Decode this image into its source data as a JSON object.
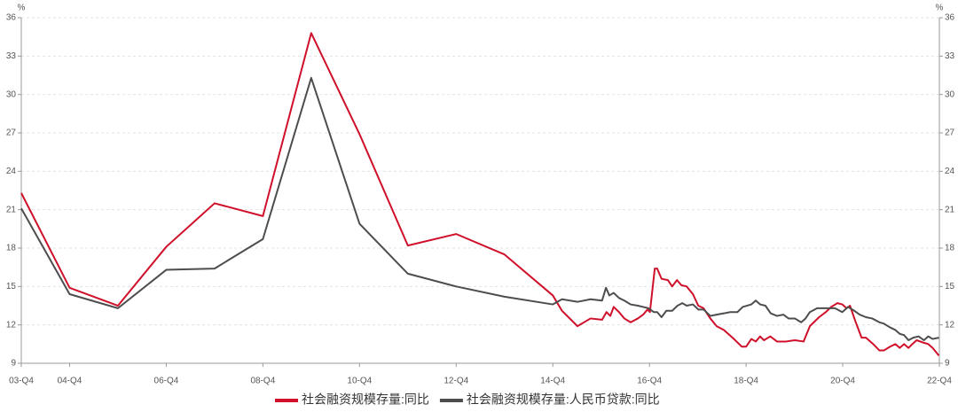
{
  "chart_data": {
    "type": "line",
    "ylabel": "%",
    "y2label": "%",
    "ylim": [
      9,
      36
    ],
    "yticks": [
      9,
      12,
      15,
      18,
      21,
      24,
      27,
      30,
      33,
      36
    ],
    "y2lim": [
      9,
      36
    ],
    "y2ticks": [
      9,
      12,
      15,
      18,
      21,
      24,
      27,
      30,
      33,
      36
    ],
    "xlim": [
      2003.75,
      2022.75
    ],
    "xticks": [
      {
        "value": 2003.75,
        "label": "03-Q4"
      },
      {
        "value": 2004.75,
        "label": "04-Q4"
      },
      {
        "value": 2006.75,
        "label": "06-Q4"
      },
      {
        "value": 2008.75,
        "label": "08-Q4"
      },
      {
        "value": 2010.75,
        "label": "10-Q4"
      },
      {
        "value": 2012.75,
        "label": "12-Q4"
      },
      {
        "value": 2014.75,
        "label": "14-Q4"
      },
      {
        "value": 2016.75,
        "label": "16-Q4"
      },
      {
        "value": 2018.75,
        "label": "18-Q4"
      },
      {
        "value": 2020.75,
        "label": "20-Q4"
      },
      {
        "value": 2022.75,
        "label": "22-Q4"
      }
    ],
    "grid": true,
    "legend": "bottom",
    "series": [
      {
        "name": "社会融资规模存量:同比",
        "color": "#d0102a",
        "x": [
          2003.75,
          2004.75,
          2005.75,
          2006.75,
          2007.75,
          2008.75,
          2009.75,
          2010.75,
          2011.75,
          2012.75,
          2013.75,
          2014.75,
          2014.94,
          2015.26,
          2015.53,
          2015.77,
          2015.86,
          2015.94,
          2016.01,
          2016.12,
          2016.23,
          2016.36,
          2016.51,
          2016.62,
          2016.71,
          2016.76,
          2016.86,
          2016.91,
          2017.0,
          2017.13,
          2017.22,
          2017.32,
          2017.41,
          2017.52,
          2017.65,
          2017.76,
          2017.87,
          2018.01,
          2018.14,
          2018.29,
          2018.47,
          2018.66,
          2018.75,
          2018.86,
          2018.95,
          2019.04,
          2019.12,
          2019.25,
          2019.39,
          2019.58,
          2019.76,
          2019.94,
          2020.07,
          2020.26,
          2020.4,
          2020.51,
          2020.64,
          2020.74,
          2020.83,
          2020.9,
          2021.01,
          2021.14,
          2021.23,
          2021.38,
          2021.51,
          2021.6,
          2021.73,
          2021.84,
          2021.93,
          2022.02,
          2022.11,
          2022.19,
          2022.28,
          2022.43,
          2022.52,
          2022.61,
          2022.74
        ],
        "values": [
          22.3,
          14.9,
          13.5,
          18.1,
          21.5,
          20.5,
          34.8,
          26.9,
          18.2,
          19.1,
          17.5,
          14.3,
          13.1,
          11.9,
          12.5,
          12.4,
          13.0,
          12.7,
          13.4,
          13.0,
          12.5,
          12.2,
          12.5,
          12.8,
          13.2,
          13.0,
          16.4,
          16.4,
          15.6,
          15.5,
          15.0,
          15.5,
          15.1,
          15.0,
          14.4,
          13.5,
          13.3,
          12.5,
          11.9,
          11.6,
          11.0,
          10.3,
          10.3,
          10.9,
          10.7,
          11.1,
          10.8,
          11.1,
          10.7,
          10.7,
          10.8,
          10.7,
          11.9,
          12.6,
          13.0,
          13.4,
          13.7,
          13.6,
          13.3,
          13.5,
          12.3,
          11.0,
          11.0,
          10.5,
          10.0,
          10.0,
          10.3,
          10.5,
          10.2,
          10.5,
          10.2,
          10.5,
          10.8,
          10.6,
          10.5,
          10.2,
          9.6
        ]
      },
      {
        "name": "社会融资规模存量:人民币贷款:同比",
        "color": "#4d4d4d",
        "axis": "y2",
        "x": [
          2003.75,
          2004.75,
          2005.75,
          2006.75,
          2007.75,
          2008.75,
          2009.75,
          2010.75,
          2011.75,
          2012.75,
          2013.75,
          2014.75,
          2014.94,
          2015.26,
          2015.53,
          2015.77,
          2015.85,
          2015.92,
          2016.01,
          2016.12,
          2016.23,
          2016.36,
          2016.51,
          2016.62,
          2016.73,
          2016.84,
          2016.91,
          2017.0,
          2017.1,
          2017.22,
          2017.33,
          2017.43,
          2017.52,
          2017.65,
          2017.76,
          2017.87,
          2018.01,
          2018.14,
          2018.29,
          2018.42,
          2018.57,
          2018.68,
          2018.86,
          2018.95,
          2019.04,
          2019.15,
          2019.26,
          2019.39,
          2019.52,
          2019.63,
          2019.76,
          2019.89,
          2019.98,
          2020.07,
          2020.22,
          2020.4,
          2020.59,
          2020.74,
          2020.86,
          2020.99,
          2021.1,
          2021.23,
          2021.36,
          2021.51,
          2021.6,
          2021.73,
          2021.84,
          2021.93,
          2022.02,
          2022.11,
          2022.21,
          2022.32,
          2022.43,
          2022.52,
          2022.61,
          2022.74
        ],
        "values": [
          21.1,
          14.4,
          13.3,
          16.3,
          16.4,
          18.7,
          31.3,
          19.9,
          16.0,
          15.0,
          14.2,
          13.6,
          14.0,
          13.8,
          14.0,
          13.9,
          14.9,
          14.3,
          14.5,
          14.1,
          13.9,
          13.6,
          13.5,
          13.4,
          13.3,
          13.0,
          13.0,
          12.6,
          13.1,
          13.1,
          13.5,
          13.7,
          13.5,
          13.6,
          13.2,
          13.2,
          12.7,
          12.8,
          12.9,
          13.0,
          13.0,
          13.4,
          13.6,
          13.9,
          13.6,
          13.5,
          12.9,
          12.7,
          12.8,
          12.5,
          12.5,
          12.2,
          12.5,
          13.0,
          13.3,
          13.3,
          13.3,
          13.0,
          13.4,
          13.1,
          12.8,
          12.6,
          12.5,
          12.2,
          12.1,
          11.8,
          11.6,
          11.3,
          11.2,
          10.8,
          11.0,
          11.1,
          10.8,
          11.1,
          10.9,
          11.0
        ]
      }
    ]
  }
}
